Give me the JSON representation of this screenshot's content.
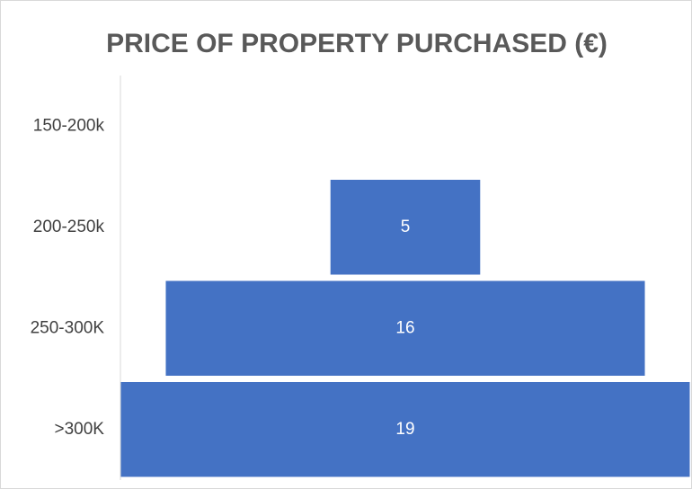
{
  "chart_data": {
    "type": "funnel",
    "title": "PRICE OF PROPERTY PURCHASED (€)",
    "categories": [
      "150-200k",
      "200-250k",
      "250-300K",
      ">300K"
    ],
    "values": [
      0,
      5,
      16,
      19
    ],
    "color": "#4472c4"
  }
}
